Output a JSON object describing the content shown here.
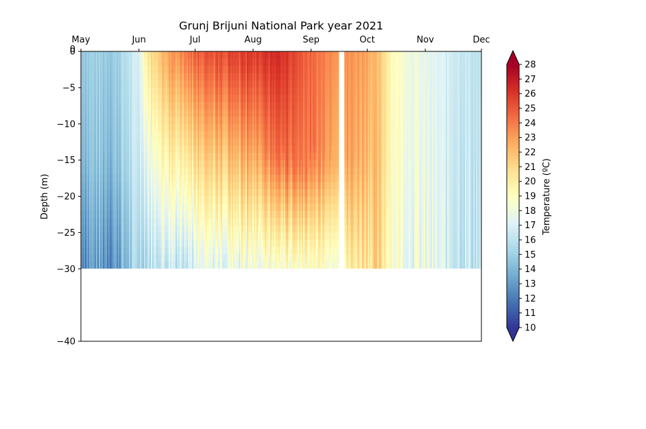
{
  "chart_data": {
    "type": "heatmap",
    "title": "Grunj Brijuni National Park year 2021",
    "ylabel": "Depth (m)",
    "xlabel": "",
    "x_ticks": [
      "May",
      "Jun",
      "Jul",
      "Aug",
      "Sep",
      "Oct",
      "Nov",
      "Dec"
    ],
    "x_range": [
      "2021-05-01",
      "2021-12-01"
    ],
    "y_ticks": [
      0,
      -5,
      -10,
      -15,
      -20,
      -25,
      -30,
      -40
    ],
    "y_top_extra_label": "0",
    "ylim": [
      -40,
      0
    ],
    "data_depth_range": [
      -30,
      0
    ],
    "gap": [
      "2021-09-16",
      "2021-09-19"
    ],
    "colorbar": {
      "label": "Temperature (ºC)",
      "min": 10,
      "max": 28,
      "ticks": [
        10,
        11,
        12,
        13,
        14,
        15,
        16,
        17,
        18,
        19,
        20,
        21,
        22,
        23,
        24,
        25,
        26,
        27,
        28
      ],
      "colormap": "RdYlBu_r",
      "extend": "both"
    },
    "temperature_profile_estimates": [
      {
        "date": "2021-05-01",
        "surface": 15,
        "d15": 14.5,
        "d30": 13
      },
      {
        "date": "2021-05-20",
        "surface": 15,
        "d15": 14.5,
        "d30": 13
      },
      {
        "date": "2021-06-01",
        "surface": 17,
        "d15": 16.5,
        "d30": 15.5
      },
      {
        "date": "2021-06-05",
        "surface": 20.5,
        "d15": 18,
        "d30": 16
      },
      {
        "date": "2021-06-20",
        "surface": 23.5,
        "d15": 20,
        "d30": 16.5
      },
      {
        "date": "2021-07-01",
        "surface": 25,
        "d15": 21,
        "d30": 17
      },
      {
        "date": "2021-08-01",
        "surface": 26,
        "d15": 22.5,
        "d30": 18
      },
      {
        "date": "2021-08-15",
        "surface": 26.5,
        "d15": 24.5,
        "d30": 18.5
      },
      {
        "date": "2021-09-01",
        "surface": 24.5,
        "d15": 24,
        "d30": 18.5
      },
      {
        "date": "2021-09-15",
        "surface": 23.5,
        "d15": 23,
        "d30": 19
      },
      {
        "date": "2021-10-01",
        "surface": 23,
        "d15": 22.5,
        "d30": 21
      },
      {
        "date": "2021-10-10",
        "surface": 21,
        "d15": 21,
        "d30": 20.5
      },
      {
        "date": "2021-10-15",
        "surface": 19,
        "d15": 19,
        "d30": 18.5
      },
      {
        "date": "2021-11-01",
        "surface": 17.5,
        "d15": 17.5,
        "d30": 17.5
      },
      {
        "date": "2021-12-01",
        "surface": 16,
        "d15": 16,
        "d30": 16
      }
    ]
  }
}
